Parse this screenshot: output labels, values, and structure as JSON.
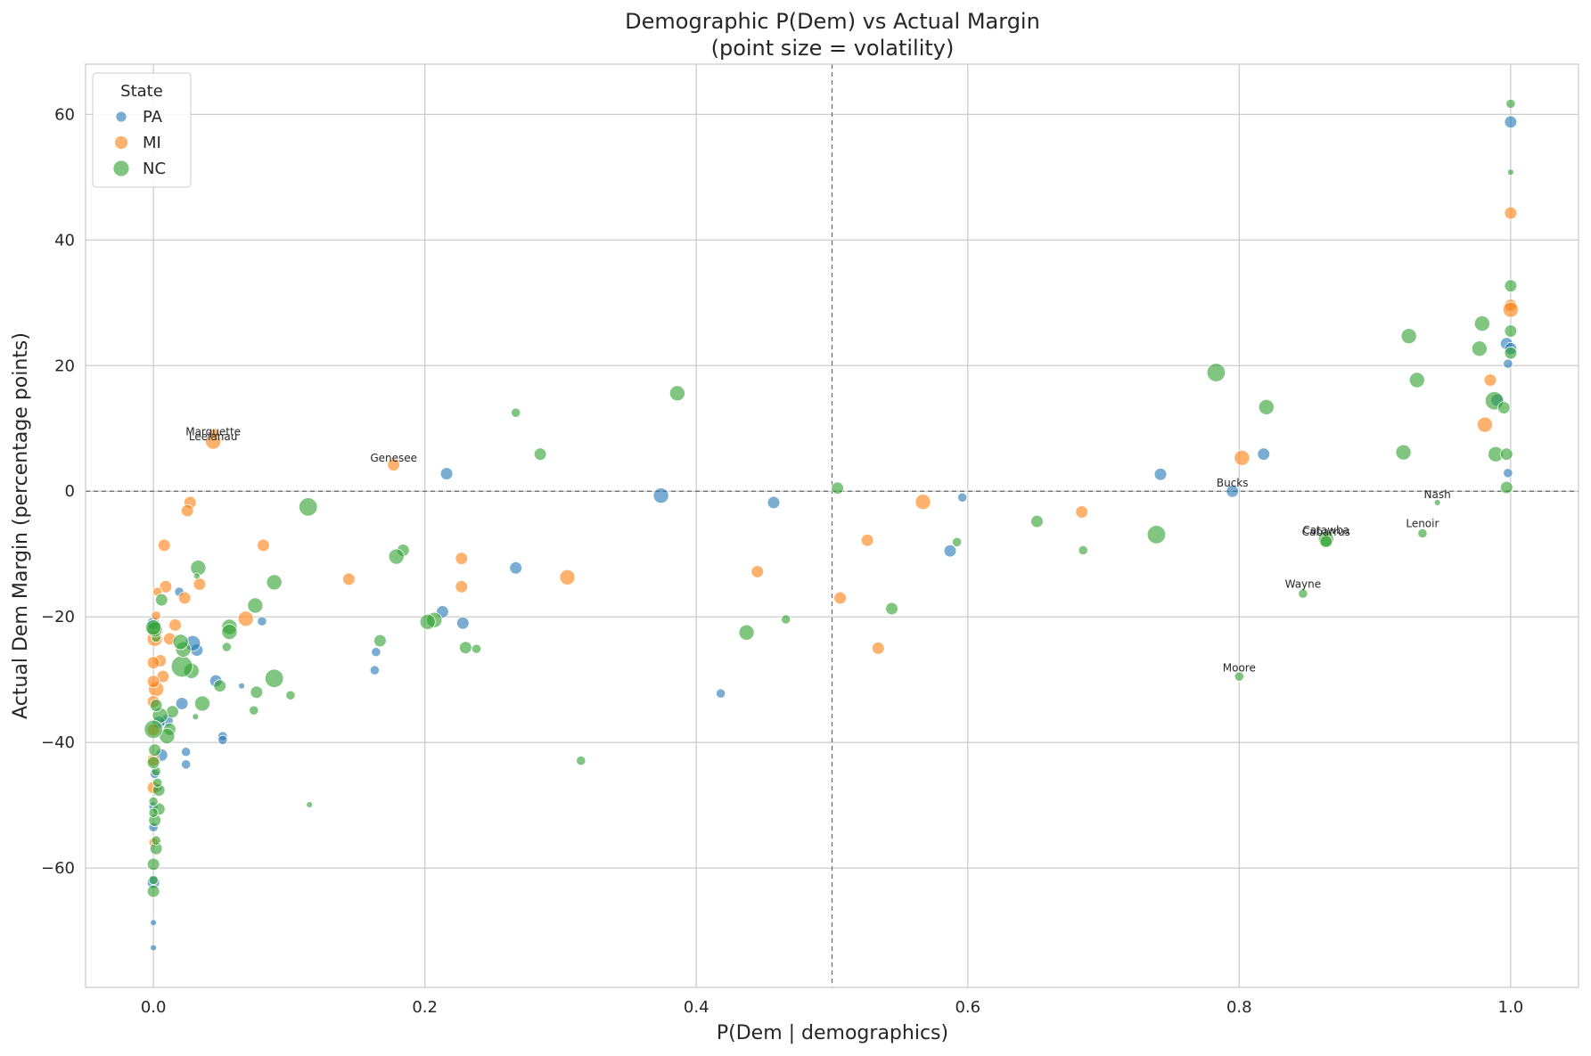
{
  "chart_data": {
    "type": "scatter",
    "title": "Demographic P(Dem) vs Actual Margin",
    "subtitle": "(point size = volatility)",
    "xlabel": "P(Dem | demographics)",
    "ylabel": "Actual Dem Margin (percentage points)",
    "xlim": [
      -0.05,
      1.05
    ],
    "ylim": [
      -79,
      68
    ],
    "x_ticks": [
      0.0,
      0.2,
      0.4,
      0.6,
      0.8,
      1.0
    ],
    "x_tick_labels": [
      "0.0",
      "0.2",
      "0.4",
      "0.6",
      "0.8",
      "1.0"
    ],
    "y_ticks": [
      -60,
      -40,
      -20,
      0,
      20,
      40,
      60
    ],
    "y_tick_labels": [
      "−60",
      "−40",
      "−20",
      "0",
      "20",
      "40",
      "60"
    ],
    "grid": true,
    "reference_lines": [
      {
        "axis": "x",
        "value": 0.5,
        "style": "dashed"
      },
      {
        "axis": "y",
        "value": 0,
        "style": "dashed"
      }
    ],
    "legend": {
      "title": "State",
      "placement": "top-left",
      "entries": [
        "PA",
        "MI",
        "NC"
      ]
    },
    "colors": {
      "PA": "#1f77b4",
      "MI": "#ff7f0e",
      "NC": "#2ca02c"
    },
    "point_size_meaning": "volatility",
    "series": [
      {
        "name": "PA",
        "color": "#1f77b4",
        "points": [
          {
            "x": 1.0,
            "y": 58.8,
            "size": 3
          },
          {
            "x": 0.997,
            "y": 23.5,
            "size": 3
          },
          {
            "x": 1.0,
            "y": 22.7,
            "size": 3
          },
          {
            "x": 0.998,
            "y": 20.3,
            "size": 2
          },
          {
            "x": 0.99,
            "y": 14.5,
            "size": 3
          },
          {
            "x": 0.998,
            "y": 2.9,
            "size": 2
          },
          {
            "x": 0.818,
            "y": 5.9,
            "size": 3
          },
          {
            "x": 0.795,
            "y": 0.0,
            "size": 3
          },
          {
            "x": 0.742,
            "y": 2.7,
            "size": 3
          },
          {
            "x": 0.596,
            "y": -1.0,
            "size": 2
          },
          {
            "x": 0.587,
            "y": -9.5,
            "size": 3
          },
          {
            "x": 0.457,
            "y": -1.8,
            "size": 3
          },
          {
            "x": 0.418,
            "y": -32.2,
            "size": 2
          },
          {
            "x": 0.374,
            "y": -0.7,
            "size": 4
          },
          {
            "x": 0.267,
            "y": -12.2,
            "size": 3
          },
          {
            "x": 0.228,
            "y": -21.0,
            "size": 3
          },
          {
            "x": 0.216,
            "y": 2.8,
            "size": 3
          },
          {
            "x": 0.213,
            "y": -19.2,
            "size": 3
          },
          {
            "x": 0.164,
            "y": -25.6,
            "size": 2
          },
          {
            "x": 0.163,
            "y": -28.5,
            "size": 2
          },
          {
            "x": 0.08,
            "y": -20.7,
            "size": 2
          },
          {
            "x": 0.065,
            "y": -31.0,
            "size": 1
          },
          {
            "x": 0.051,
            "y": -39.0,
            "size": 2
          },
          {
            "x": 0.051,
            "y": -39.6,
            "size": 2
          },
          {
            "x": 0.046,
            "y": -30.2,
            "size": 3
          },
          {
            "x": 0.032,
            "y": -25.3,
            "size": 3
          },
          {
            "x": 0.029,
            "y": -24.2,
            "size": 4
          },
          {
            "x": 0.024,
            "y": -41.5,
            "size": 2
          },
          {
            "x": 0.024,
            "y": -43.5,
            "size": 2
          },
          {
            "x": 0.021,
            "y": -33.8,
            "size": 3
          },
          {
            "x": 0.019,
            "y": -16.0,
            "size": 2
          },
          {
            "x": 0.01,
            "y": -36.5,
            "size": 3
          },
          {
            "x": 0.006,
            "y": -42.0,
            "size": 3
          },
          {
            "x": 0.004,
            "y": -36.8,
            "size": 3
          },
          {
            "x": 0.003,
            "y": -47.2,
            "size": 2
          },
          {
            "x": 0.001,
            "y": -45.0,
            "size": 2
          },
          {
            "x": 0.0,
            "y": -50.2,
            "size": 2
          },
          {
            "x": 0.0,
            "y": -53.5,
            "size": 2
          },
          {
            "x": 0.0,
            "y": -62.3,
            "size": 3
          },
          {
            "x": 0.0,
            "y": -68.7,
            "size": 1
          },
          {
            "x": 0.0,
            "y": -72.7,
            "size": 1
          },
          {
            "x": 0.0,
            "y": -21.0,
            "size": 3
          }
        ]
      },
      {
        "name": "MI",
        "color": "#ff7f0e",
        "points": [
          {
            "x": 1.0,
            "y": 44.3,
            "size": 3
          },
          {
            "x": 1.0,
            "y": 29.6,
            "size": 3
          },
          {
            "x": 1.0,
            "y": 28.9,
            "size": 4
          },
          {
            "x": 0.985,
            "y": 17.7,
            "size": 3
          },
          {
            "x": 0.981,
            "y": 10.6,
            "size": 4
          },
          {
            "x": 0.802,
            "y": 5.3,
            "size": 4
          },
          {
            "x": 0.684,
            "y": -3.3,
            "size": 3
          },
          {
            "x": 0.567,
            "y": -1.7,
            "size": 4
          },
          {
            "x": 0.526,
            "y": -7.8,
            "size": 3
          },
          {
            "x": 0.534,
            "y": -25.0,
            "size": 3
          },
          {
            "x": 0.506,
            "y": -17.0,
            "size": 3
          },
          {
            "x": 0.445,
            "y": -12.8,
            "size": 3
          },
          {
            "x": 0.305,
            "y": -13.7,
            "size": 4
          },
          {
            "x": 0.227,
            "y": -10.7,
            "size": 3
          },
          {
            "x": 0.227,
            "y": -15.2,
            "size": 3
          },
          {
            "x": 0.177,
            "y": 4.2,
            "size": 3
          },
          {
            "x": 0.144,
            "y": -14.0,
            "size": 3
          },
          {
            "x": 0.081,
            "y": -8.6,
            "size": 3
          },
          {
            "x": 0.068,
            "y": -20.3,
            "size": 4
          },
          {
            "x": 0.044,
            "y": 7.9,
            "size": 4
          },
          {
            "x": 0.045,
            "y": 9.2,
            "size": 2
          },
          {
            "x": 0.034,
            "y": -14.8,
            "size": 3
          },
          {
            "x": 0.027,
            "y": -1.8,
            "size": 3
          },
          {
            "x": 0.025,
            "y": -3.1,
            "size": 3
          },
          {
            "x": 0.023,
            "y": -17.0,
            "size": 3
          },
          {
            "x": 0.016,
            "y": -21.3,
            "size": 3
          },
          {
            "x": 0.008,
            "y": -8.6,
            "size": 3
          },
          {
            "x": 0.009,
            "y": -15.2,
            "size": 3
          },
          {
            "x": 0.012,
            "y": -23.5,
            "size": 3
          },
          {
            "x": 0.007,
            "y": -29.5,
            "size": 3
          },
          {
            "x": 0.005,
            "y": -27.0,
            "size": 3
          },
          {
            "x": 0.003,
            "y": -16.0,
            "size": 2
          },
          {
            "x": 0.002,
            "y": -19.8,
            "size": 2
          },
          {
            "x": 0.001,
            "y": -23.5,
            "size": 4
          },
          {
            "x": 0.002,
            "y": -31.5,
            "size": 4
          },
          {
            "x": 0.0,
            "y": -27.3,
            "size": 3
          },
          {
            "x": 0.0,
            "y": -30.3,
            "size": 3
          },
          {
            "x": 0.0,
            "y": -33.5,
            "size": 3
          },
          {
            "x": 0.0,
            "y": -38.0,
            "size": 3
          },
          {
            "x": 0.0,
            "y": -42.8,
            "size": 3
          },
          {
            "x": 0.0,
            "y": -47.2,
            "size": 3
          },
          {
            "x": 0.0,
            "y": -55.9,
            "size": 2
          }
        ]
      },
      {
        "name": "NC",
        "color": "#2ca02c",
        "points": [
          {
            "x": 1.0,
            "y": 61.7,
            "size": 2
          },
          {
            "x": 1.0,
            "y": 50.8,
            "size": 1
          },
          {
            "x": 1.0,
            "y": 32.7,
            "size": 3
          },
          {
            "x": 0.979,
            "y": 26.7,
            "size": 4
          },
          {
            "x": 1.0,
            "y": 25.5,
            "size": 3
          },
          {
            "x": 0.925,
            "y": 24.7,
            "size": 4
          },
          {
            "x": 0.977,
            "y": 22.7,
            "size": 4
          },
          {
            "x": 1.0,
            "y": 22.0,
            "size": 3
          },
          {
            "x": 0.783,
            "y": 18.9,
            "size": 5
          },
          {
            "x": 0.931,
            "y": 17.7,
            "size": 4
          },
          {
            "x": 0.988,
            "y": 14.4,
            "size": 5
          },
          {
            "x": 0.995,
            "y": 13.3,
            "size": 3
          },
          {
            "x": 0.82,
            "y": 13.4,
            "size": 4
          },
          {
            "x": 0.921,
            "y": 6.2,
            "size": 4
          },
          {
            "x": 0.989,
            "y": 5.9,
            "size": 4
          },
          {
            "x": 0.997,
            "y": 5.9,
            "size": 3
          },
          {
            "x": 0.997,
            "y": 0.6,
            "size": 3
          },
          {
            "x": 0.504,
            "y": 0.5,
            "size": 3
          },
          {
            "x": 0.946,
            "y": -1.8,
            "size": 1
          },
          {
            "x": 0.651,
            "y": -4.8,
            "size": 3
          },
          {
            "x": 0.739,
            "y": -6.9,
            "size": 5
          },
          {
            "x": 0.864,
            "y": -7.6,
            "size": 4
          },
          {
            "x": 0.864,
            "y": -8.0,
            "size": 3
          },
          {
            "x": 0.935,
            "y": -6.7,
            "size": 2
          },
          {
            "x": 0.592,
            "y": -8.1,
            "size": 2
          },
          {
            "x": 0.685,
            "y": -9.4,
            "size": 2
          },
          {
            "x": 0.847,
            "y": -16.3,
            "size": 2
          },
          {
            "x": 0.8,
            "y": -29.5,
            "size": 2
          },
          {
            "x": 0.544,
            "y": -18.7,
            "size": 3
          },
          {
            "x": 0.466,
            "y": -20.4,
            "size": 2
          },
          {
            "x": 0.437,
            "y": -22.5,
            "size": 4
          },
          {
            "x": 0.386,
            "y": 15.6,
            "size": 4
          },
          {
            "x": 0.285,
            "y": 5.9,
            "size": 3
          },
          {
            "x": 0.267,
            "y": 12.5,
            "size": 2
          },
          {
            "x": 0.315,
            "y": -42.9,
            "size": 2
          },
          {
            "x": 0.238,
            "y": -25.1,
            "size": 2
          },
          {
            "x": 0.23,
            "y": -24.9,
            "size": 3
          },
          {
            "x": 0.207,
            "y": -20.5,
            "size": 4
          },
          {
            "x": 0.202,
            "y": -20.8,
            "size": 4
          },
          {
            "x": 0.184,
            "y": -9.4,
            "size": 3
          },
          {
            "x": 0.179,
            "y": -10.4,
            "size": 4
          },
          {
            "x": 0.167,
            "y": -23.8,
            "size": 3
          },
          {
            "x": 0.114,
            "y": -2.5,
            "size": 5
          },
          {
            "x": 0.115,
            "y": -49.9,
            "size": 1
          },
          {
            "x": 0.101,
            "y": -32.5,
            "size": 2
          },
          {
            "x": 0.089,
            "y": -14.5,
            "size": 4
          },
          {
            "x": 0.089,
            "y": -29.8,
            "size": 5
          },
          {
            "x": 0.075,
            "y": -18.2,
            "size": 4
          },
          {
            "x": 0.076,
            "y": -32.0,
            "size": 3
          },
          {
            "x": 0.074,
            "y": -34.9,
            "size": 2
          },
          {
            "x": 0.056,
            "y": -21.6,
            "size": 4
          },
          {
            "x": 0.056,
            "y": -22.4,
            "size": 4
          },
          {
            "x": 0.054,
            "y": -24.8,
            "size": 2
          },
          {
            "x": 0.049,
            "y": -31.0,
            "size": 3
          },
          {
            "x": 0.036,
            "y": -33.8,
            "size": 4
          },
          {
            "x": 0.033,
            "y": -12.2,
            "size": 4
          },
          {
            "x": 0.032,
            "y": -13.5,
            "size": 1
          },
          {
            "x": 0.031,
            "y": -35.9,
            "size": 1
          },
          {
            "x": 0.028,
            "y": -28.6,
            "size": 4
          },
          {
            "x": 0.021,
            "y": -27.9,
            "size": 6
          },
          {
            "x": 0.022,
            "y": -25.2,
            "size": 4
          },
          {
            "x": 0.02,
            "y": -24.0,
            "size": 4
          },
          {
            "x": 0.014,
            "y": -35.1,
            "size": 3
          },
          {
            "x": 0.012,
            "y": -37.9,
            "size": 3
          },
          {
            "x": 0.01,
            "y": -39.0,
            "size": 4
          },
          {
            "x": 0.006,
            "y": -17.3,
            "size": 3
          },
          {
            "x": 0.005,
            "y": -35.7,
            "size": 4
          },
          {
            "x": 0.004,
            "y": -50.6,
            "size": 3
          },
          {
            "x": 0.004,
            "y": -47.6,
            "size": 3
          },
          {
            "x": 0.003,
            "y": -46.4,
            "size": 2
          },
          {
            "x": 0.002,
            "y": -44.6,
            "size": 2
          },
          {
            "x": 0.002,
            "y": -56.9,
            "size": 3
          },
          {
            "x": 0.002,
            "y": -55.6,
            "size": 2
          },
          {
            "x": 0.002,
            "y": -23.3,
            "size": 2
          },
          {
            "x": 0.002,
            "y": -34.1,
            "size": 3
          },
          {
            "x": 0.001,
            "y": -41.2,
            "size": 3
          },
          {
            "x": 0.001,
            "y": -52.4,
            "size": 3
          },
          {
            "x": 0.001,
            "y": -22.0,
            "size": 4
          },
          {
            "x": 0.0,
            "y": -21.7,
            "size": 4
          },
          {
            "x": 0.0,
            "y": -37.9,
            "size": 5
          },
          {
            "x": 0.0,
            "y": -43.2,
            "size": 3
          },
          {
            "x": 0.0,
            "y": -49.4,
            "size": 2
          },
          {
            "x": 0.0,
            "y": -51.2,
            "size": 2
          },
          {
            "x": 0.0,
            "y": -59.4,
            "size": 3
          },
          {
            "x": 0.0,
            "y": -61.9,
            "size": 2
          },
          {
            "x": 0.0,
            "y": -63.7,
            "size": 3
          }
        ]
      }
    ],
    "annotations": [
      {
        "text": "Marquette",
        "x": 0.044,
        "y": 8.2
      },
      {
        "text": "Leelanau",
        "x": 0.044,
        "y": 7.4
      },
      {
        "text": "Genesee",
        "x": 0.177,
        "y": 4.0
      },
      {
        "text": "Bucks",
        "x": 0.795,
        "y": 0.0
      },
      {
        "text": "Nash",
        "x": 0.946,
        "y": -1.8
      },
      {
        "text": "Lenoir",
        "x": 0.935,
        "y": -6.4
      },
      {
        "text": "Catawba",
        "x": 0.864,
        "y": -7.5
      },
      {
        "text": "Cabarrus",
        "x": 0.864,
        "y": -7.8
      },
      {
        "text": "Wayne",
        "x": 0.847,
        "y": -16.1
      },
      {
        "text": "Moore",
        "x": 0.8,
        "y": -29.4
      }
    ]
  }
}
